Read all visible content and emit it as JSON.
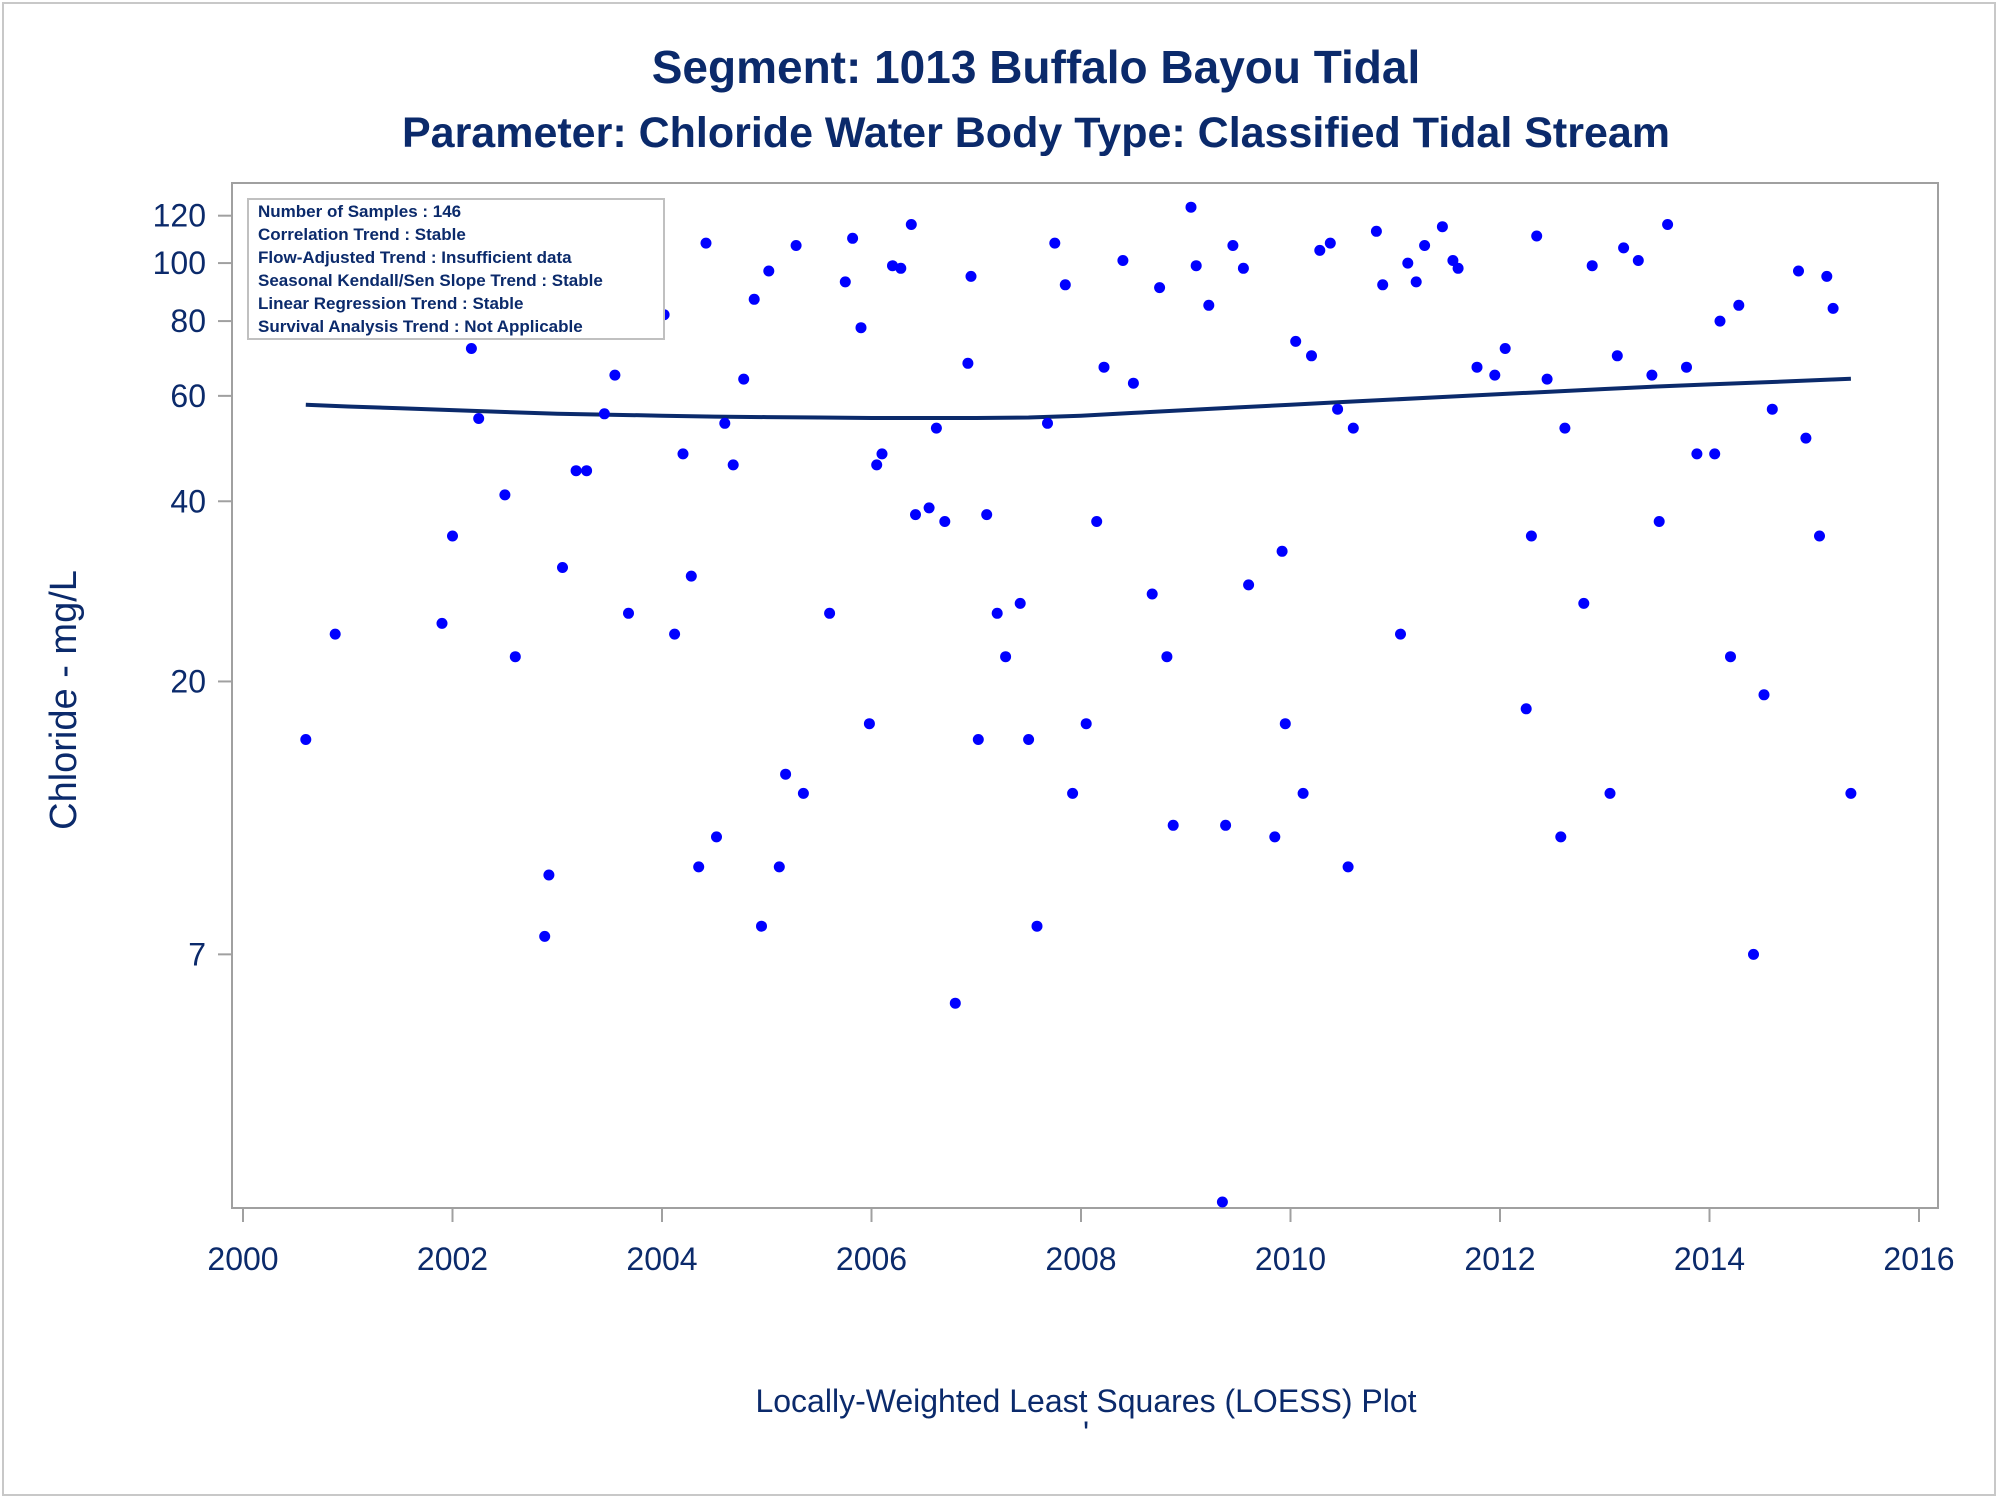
{
  "chart_data": {
    "type": "scatter",
    "title": "Segment: 1013  Buffalo Bayou Tidal",
    "subtitle": "Parameter: Chloride   Water Body Type: Classified Tidal Stream",
    "xlabel": "",
    "ylabel": "Chloride - mg/L",
    "footer": "Locally-Weighted Least Squares (LOESS) Plot",
    "footer_mark": "'",
    "y_scale": "log",
    "xlim": [
      2000,
      2016
    ],
    "ylim": [
      2.5,
      130
    ],
    "x_ticks": [
      2000,
      2002,
      2004,
      2006,
      2008,
      2010,
      2012,
      2014,
      2016
    ],
    "x_tick_labels": [
      "2000",
      "2002",
      "2004",
      "2006",
      "2008",
      "2010",
      "2012",
      "2014",
      "2016"
    ],
    "y_ticks": [
      7,
      20,
      40,
      60,
      80,
      100,
      120
    ],
    "y_tick_labels": [
      "7",
      "20",
      "40",
      "60",
      "80",
      "100",
      "120"
    ],
    "grid": false,
    "legend": "none",
    "stats": [
      "Number of Samples : 146",
      "Correlation Trend : Stable",
      "Flow-Adjusted Trend : Insufficient data",
      "Seasonal Kendall/Sen Slope Trend : Stable",
      "Linear Regression Trend : Stable",
      "Survival Analysis Trend : Not Applicable"
    ],
    "stats_box_position": "top-left",
    "colors": {
      "points": "#0000ff",
      "trend": "#0b2a6b",
      "text": "#0b2a6b",
      "frame": "#a0a0a0"
    },
    "series": [
      {
        "kind": "points",
        "points": [
          [
            2000.6,
            16
          ],
          [
            2000.88,
            24
          ],
          [
            2001.1,
            78
          ],
          [
            2001.4,
            97
          ],
          [
            2001.6,
            93
          ],
          [
            2001.85,
            92
          ],
          [
            2001.9,
            25
          ],
          [
            2002.0,
            35
          ],
          [
            2002.1,
            94
          ],
          [
            2002.18,
            72
          ],
          [
            2002.25,
            55
          ],
          [
            2002.35,
            97
          ],
          [
            2002.45,
            79
          ],
          [
            2002.5,
            41
          ],
          [
            2002.6,
            22
          ],
          [
            2002.7,
            100
          ],
          [
            2002.75,
            85
          ],
          [
            2002.88,
            7.5
          ],
          [
            2002.92,
            9.5
          ],
          [
            2003.05,
            31
          ],
          [
            2003.1,
            87
          ],
          [
            2003.18,
            45
          ],
          [
            2003.28,
            45
          ],
          [
            2003.32,
            124
          ],
          [
            2003.45,
            56
          ],
          [
            2003.55,
            65
          ],
          [
            2003.62,
            117
          ],
          [
            2003.68,
            26
          ],
          [
            2003.78,
            82
          ],
          [
            2003.85,
            84
          ],
          [
            2003.95,
            95
          ],
          [
            2004.02,
            82
          ],
          [
            2004.12,
            24
          ],
          [
            2004.2,
            48
          ],
          [
            2004.28,
            30
          ],
          [
            2004.35,
            9.8
          ],
          [
            2004.42,
            108
          ],
          [
            2004.52,
            11
          ],
          [
            2004.6,
            54
          ],
          [
            2004.68,
            46
          ],
          [
            2004.78,
            64
          ],
          [
            2004.88,
            87
          ],
          [
            2004.95,
            7.8
          ],
          [
            2005.02,
            97
          ],
          [
            2005.12,
            9.8
          ],
          [
            2005.18,
            14
          ],
          [
            2005.28,
            107
          ],
          [
            2005.35,
            13
          ],
          [
            2005.6,
            26
          ],
          [
            2005.75,
            93
          ],
          [
            2005.82,
            110
          ],
          [
            2005.9,
            78
          ],
          [
            2005.98,
            17
          ],
          [
            2006.05,
            46
          ],
          [
            2006.1,
            48
          ],
          [
            2006.2,
            99
          ],
          [
            2006.28,
            98
          ],
          [
            2006.38,
            116
          ],
          [
            2006.42,
            38
          ],
          [
            2006.55,
            39
          ],
          [
            2006.62,
            53
          ],
          [
            2006.7,
            37
          ],
          [
            2006.8,
            5.8
          ],
          [
            2006.92,
            68
          ],
          [
            2006.95,
            95
          ],
          [
            2007.02,
            16
          ],
          [
            2007.1,
            38
          ],
          [
            2007.2,
            26
          ],
          [
            2007.28,
            22
          ],
          [
            2007.42,
            27
          ],
          [
            2007.5,
            16
          ],
          [
            2007.58,
            7.8
          ],
          [
            2007.68,
            54
          ],
          [
            2007.75,
            108
          ],
          [
            2007.85,
            92
          ],
          [
            2007.92,
            13
          ],
          [
            2008.05,
            17
          ],
          [
            2008.15,
            37
          ],
          [
            2008.22,
            67
          ],
          [
            2008.4,
            101
          ],
          [
            2008.5,
            63
          ],
          [
            2008.68,
            28
          ],
          [
            2008.75,
            91
          ],
          [
            2008.82,
            22
          ],
          [
            2008.88,
            11.5
          ],
          [
            2009.05,
            124
          ],
          [
            2009.1,
            99
          ],
          [
            2009.22,
            85
          ],
          [
            2009.35,
            2.7
          ],
          [
            2009.38,
            11.5
          ],
          [
            2009.45,
            107
          ],
          [
            2009.55,
            98
          ],
          [
            2009.6,
            29
          ],
          [
            2009.85,
            11
          ],
          [
            2009.92,
            33
          ],
          [
            2009.95,
            17
          ],
          [
            2010.05,
            74
          ],
          [
            2010.12,
            13
          ],
          [
            2010.2,
            70
          ],
          [
            2010.28,
            105
          ],
          [
            2010.38,
            108
          ],
          [
            2010.45,
            57
          ],
          [
            2010.55,
            9.8
          ],
          [
            2010.6,
            53
          ],
          [
            2010.82,
            113
          ],
          [
            2010.88,
            92
          ],
          [
            2011.05,
            24
          ],
          [
            2011.12,
            100
          ],
          [
            2011.2,
            93
          ],
          [
            2011.28,
            107
          ],
          [
            2011.45,
            115
          ],
          [
            2011.55,
            101
          ],
          [
            2011.6,
            98
          ],
          [
            2011.78,
            67
          ],
          [
            2011.95,
            65
          ],
          [
            2012.05,
            72
          ],
          [
            2012.25,
            18
          ],
          [
            2012.3,
            35
          ],
          [
            2012.35,
            111
          ],
          [
            2012.45,
            64
          ],
          [
            2012.58,
            11
          ],
          [
            2012.62,
            53
          ],
          [
            2012.8,
            27
          ],
          [
            2012.88,
            99
          ],
          [
            2013.05,
            13
          ],
          [
            2013.12,
            70
          ],
          [
            2013.18,
            106
          ],
          [
            2013.32,
            101
          ],
          [
            2013.45,
            65
          ],
          [
            2013.52,
            37
          ],
          [
            2013.6,
            116
          ],
          [
            2013.78,
            67
          ],
          [
            2013.88,
            48
          ],
          [
            2014.05,
            48
          ],
          [
            2014.1,
            80
          ],
          [
            2014.2,
            22
          ],
          [
            2014.28,
            85
          ],
          [
            2014.42,
            7
          ],
          [
            2014.52,
            19
          ],
          [
            2014.6,
            57
          ],
          [
            2014.85,
            97
          ],
          [
            2014.92,
            51
          ],
          [
            2015.05,
            35
          ],
          [
            2015.12,
            95
          ],
          [
            2015.18,
            84
          ],
          [
            2015.35,
            13
          ]
        ]
      },
      {
        "kind": "loess",
        "points": [
          [
            2000.6,
            58
          ],
          [
            2001.0,
            57.6
          ],
          [
            2001.5,
            57.2
          ],
          [
            2002.0,
            56.8
          ],
          [
            2002.5,
            56.4
          ],
          [
            2003.0,
            56.0
          ],
          [
            2003.5,
            55.8
          ],
          [
            2004.0,
            55.6
          ],
          [
            2004.5,
            55.4
          ],
          [
            2005.0,
            55.3
          ],
          [
            2005.5,
            55.2
          ],
          [
            2006.0,
            55.1
          ],
          [
            2006.5,
            55.1
          ],
          [
            2007.0,
            55.1
          ],
          [
            2007.5,
            55.2
          ],
          [
            2008.0,
            55.6
          ],
          [
            2008.5,
            56.2
          ],
          [
            2009.0,
            56.8
          ],
          [
            2009.5,
            57.4
          ],
          [
            2010.0,
            58.0
          ],
          [
            2010.5,
            58.6
          ],
          [
            2011.0,
            59.2
          ],
          [
            2011.5,
            59.8
          ],
          [
            2012.0,
            60.4
          ],
          [
            2012.5,
            61.0
          ],
          [
            2013.0,
            61.6
          ],
          [
            2013.5,
            62.2
          ],
          [
            2014.0,
            62.7
          ],
          [
            2014.5,
            63.2
          ],
          [
            2015.0,
            63.7
          ],
          [
            2015.35,
            64.1
          ]
        ]
      }
    ]
  }
}
